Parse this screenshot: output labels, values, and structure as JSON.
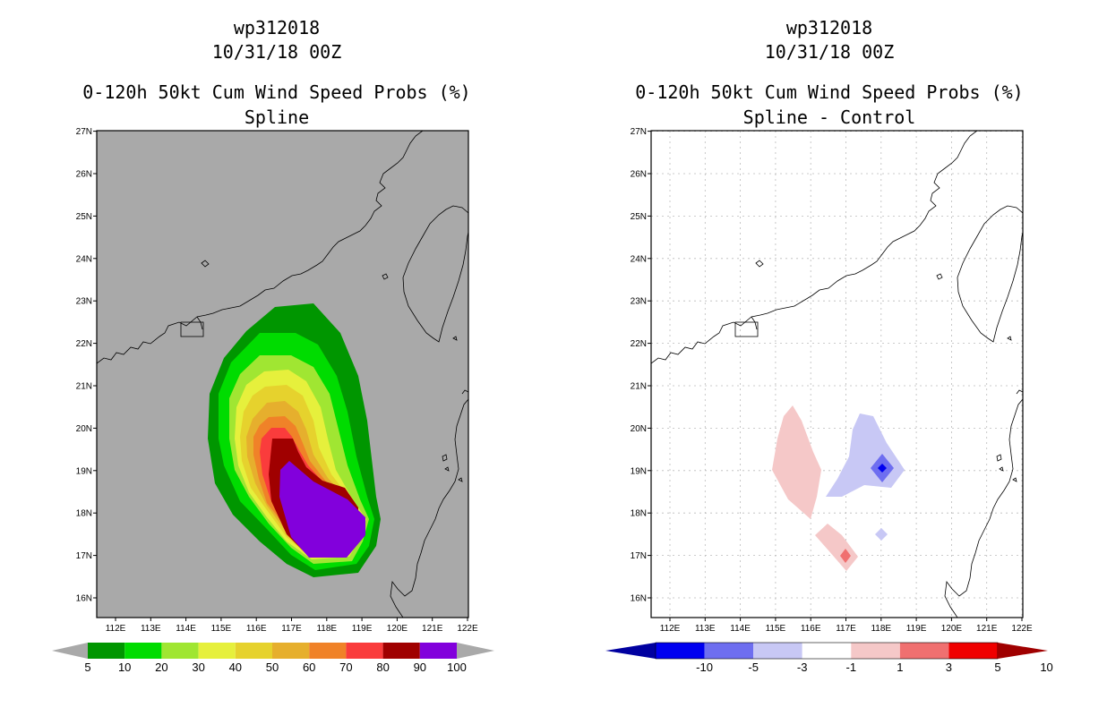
{
  "panels": [
    {
      "storm_id": "wp312018",
      "datetime": "10/31/18 00Z",
      "product": "0-120h 50kt Cum Wind Speed Probs (%)",
      "subtitle": "Spline",
      "background": "#a9a9a9",
      "x_ticks": [
        "112E",
        "113E",
        "114E",
        "115E",
        "116E",
        "117E",
        "118E",
        "119E",
        "120E",
        "121E",
        "122E"
      ],
      "y_ticks": [
        "16N",
        "17N",
        "18N",
        "19N",
        "20N",
        "21N",
        "22N",
        "23N",
        "24N",
        "25N",
        "26N",
        "27N"
      ],
      "colorbar": {
        "labels": [
          "5",
          "10",
          "20",
          "30",
          "40",
          "50",
          "60",
          "70",
          "80",
          "90",
          "100"
        ],
        "colors": [
          "#009600",
          "#00dc00",
          "#a0e632",
          "#e6f03c",
          "#e6d22d",
          "#e6af2d",
          "#f08228",
          "#fa3c3c",
          "#a00000",
          "#8200dc"
        ]
      }
    },
    {
      "storm_id": "wp312018",
      "datetime": "10/31/18 00Z",
      "product": "0-120h 50kt Cum Wind Speed Probs (%)",
      "subtitle": "Spline - Control",
      "background": "#ffffff",
      "x_ticks": [
        "112E",
        "113E",
        "114E",
        "115E",
        "116E",
        "117E",
        "118E",
        "119E",
        "120E",
        "121E",
        "122E"
      ],
      "y_ticks": [
        "16N",
        "17N",
        "18N",
        "19N",
        "20N",
        "21N",
        "22N",
        "23N",
        "24N",
        "25N",
        "26N",
        "27N"
      ],
      "colorbar": {
        "labels": [
          "-10",
          "-5",
          "-3",
          "-1",
          "1",
          "3",
          "5",
          "10"
        ],
        "colors": [
          "#0000a0",
          "#0000f0",
          "#6e6ef0",
          "#c8c8f5",
          "#ffffff",
          "#f5c8c8",
          "#f07070",
          "#f00000",
          "#a00000"
        ]
      }
    }
  ]
}
